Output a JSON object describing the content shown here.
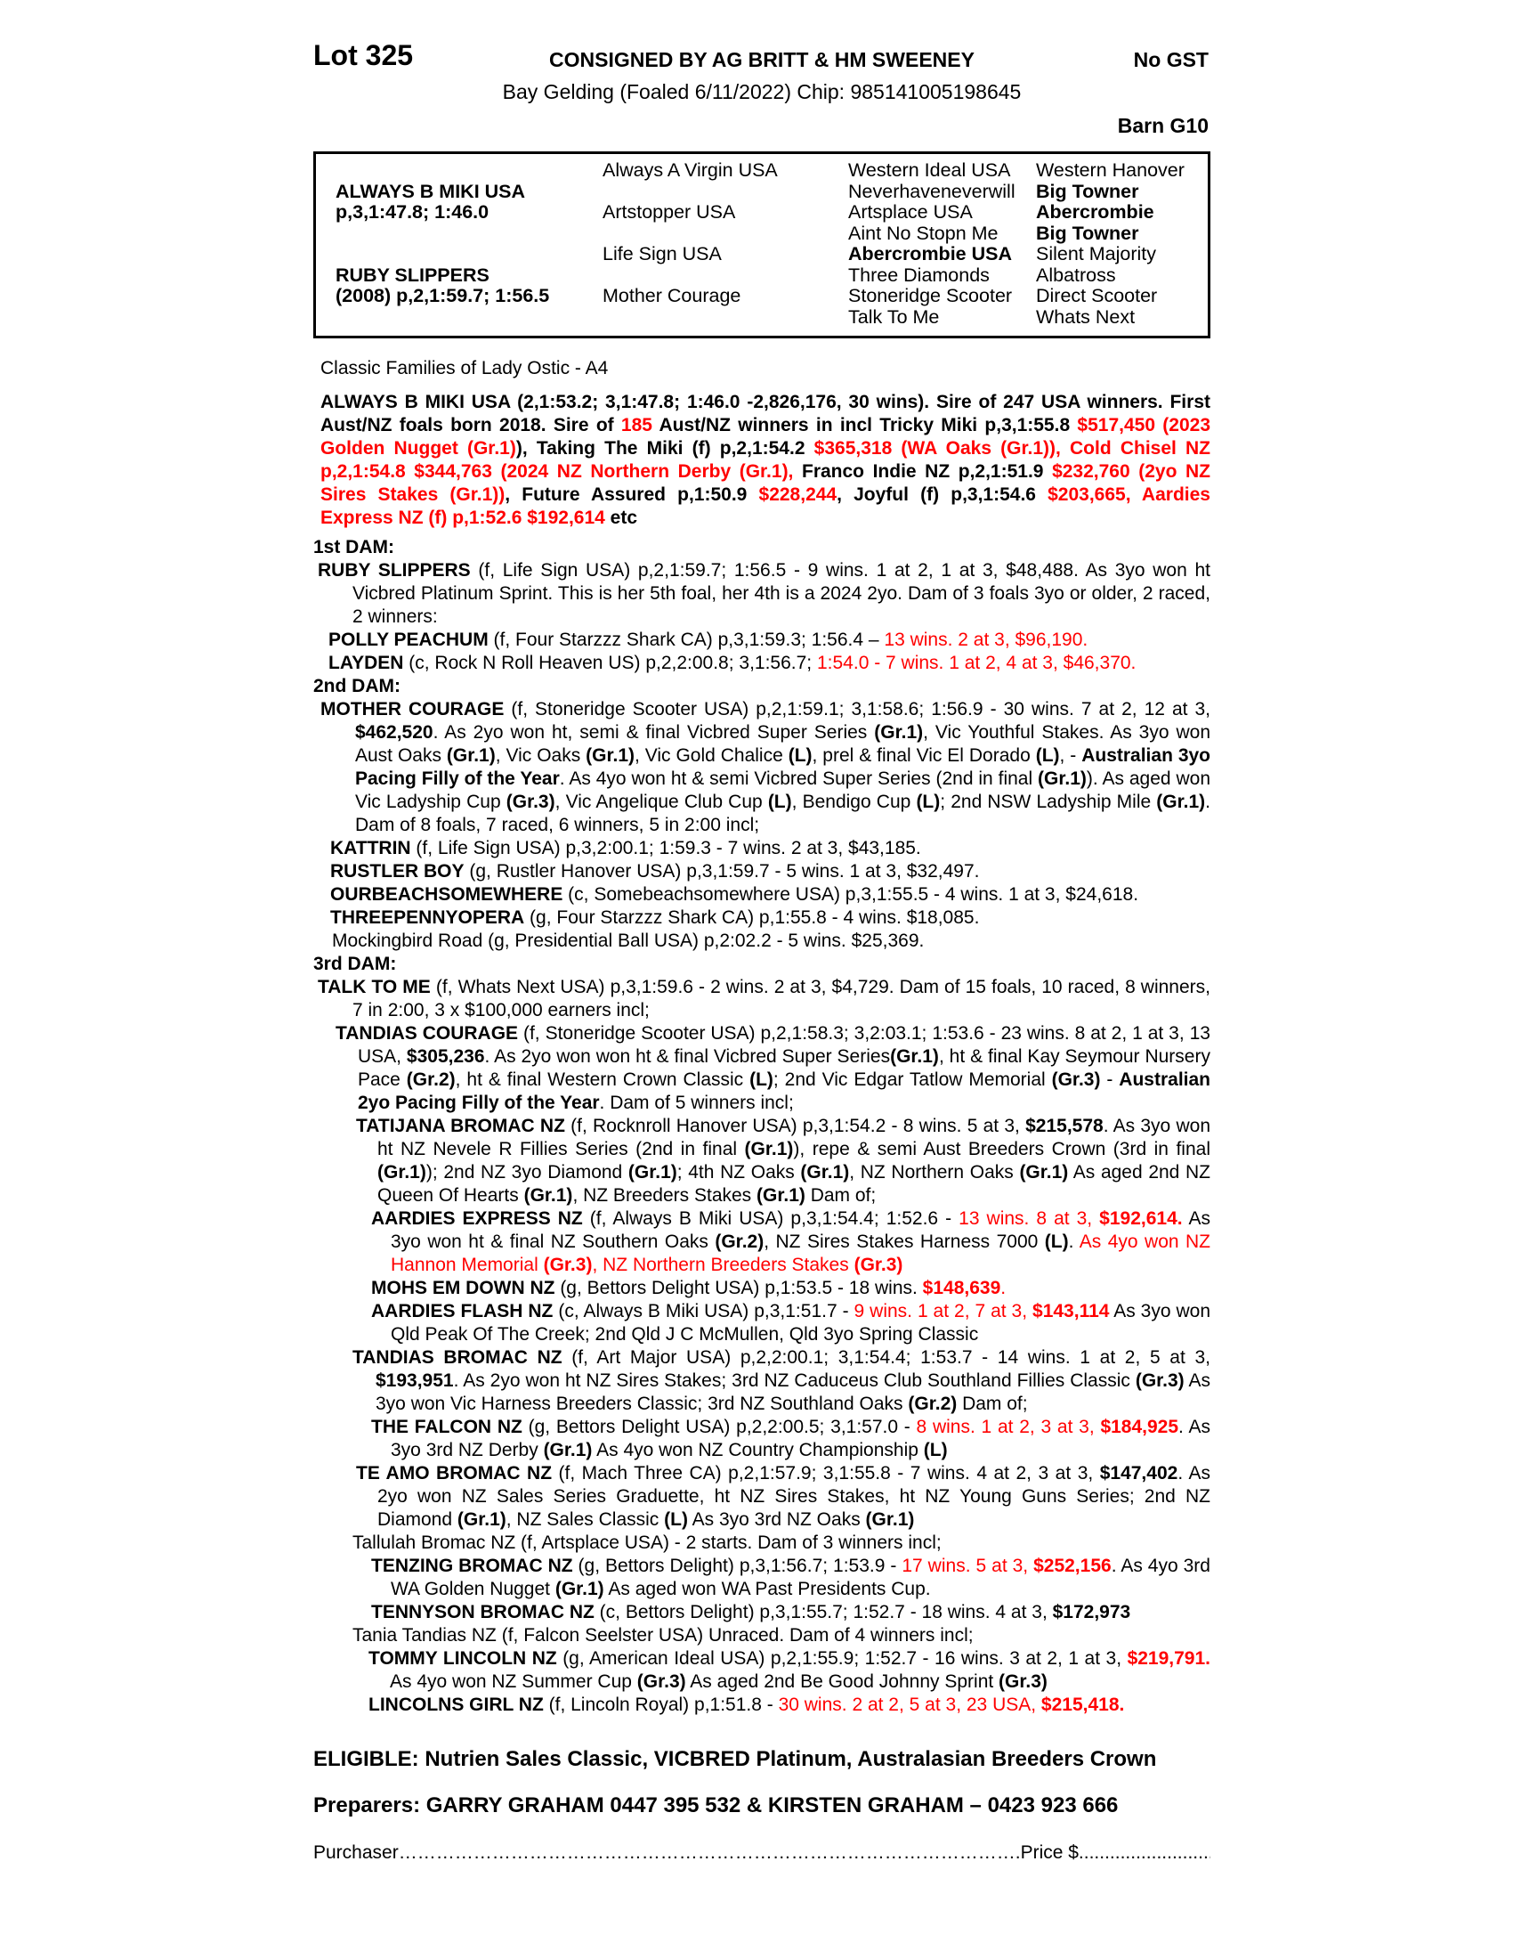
{
  "colors": {
    "accent_red": "#ff0000",
    "text": "#000000",
    "background": "#ffffff"
  },
  "header": {
    "lot": "Lot 325",
    "consigned": "CONSIGNED BY AG BRITT & HM SWEENEY",
    "no_gst": "No GST",
    "description": "Bay Gelding (Foaled 6/11/2022) Chip: 985141005198645",
    "barn": "Barn G10"
  },
  "pedigree_table": {
    "rows": [
      [
        {
          "t": ""
        },
        {
          "t": "Always A Virgin USA"
        },
        {
          "t": "Western Ideal USA"
        },
        {
          "t": "Western Hanover"
        }
      ],
      [
        {
          "t": "ALWAYS B MIKI USA",
          "b": 1
        },
        {
          "t": ""
        },
        {
          "t": "Neverhaveneverwill"
        },
        {
          "t": "Big Towner",
          "b": 1
        }
      ],
      [
        {
          "t": "p,3,1:47.8; 1:46.0",
          "b": 1
        },
        {
          "t": "Artstopper USA"
        },
        {
          "t": "Artsplace USA"
        },
        {
          "t": "Abercrombie",
          "b": 1
        }
      ],
      [
        {
          "t": ""
        },
        {
          "t": ""
        },
        {
          "t": "Aint No Stopn Me"
        },
        {
          "t": "Big Towner",
          "b": 1
        }
      ],
      [
        {
          "t": ""
        },
        {
          "t": "Life Sign USA"
        },
        {
          "t": "Abercrombie USA",
          "b": 1
        },
        {
          "t": "Silent Majority"
        }
      ],
      [
        {
          "t": "RUBY SLIPPERS",
          "b": 1
        },
        {
          "t": ""
        },
        {
          "t": "Three Diamonds"
        },
        {
          "t": "Albatross"
        }
      ],
      [
        {
          "t": "(2008) p,2,1:59.7; 1:56.5",
          "b": 1
        },
        {
          "t": "Mother Courage"
        },
        {
          "t": "Stoneridge Scooter"
        },
        {
          "t": "Direct Scooter"
        }
      ],
      [
        {
          "t": ""
        },
        {
          "t": ""
        },
        {
          "t": "Talk To Me"
        },
        {
          "t": "Whats Next"
        }
      ]
    ]
  },
  "paragraphs": [
    {
      "name": "classic-families-line",
      "ml": 8,
      "mt": 21,
      "seg": [
        {
          "t": "Classic Families of Lady Ostic - A4"
        }
      ]
    },
    {
      "name": "sire-summary",
      "ml": 8,
      "mt": 12,
      "j": 1,
      "seg": [
        {
          "t": "ALWAYS B MIKI USA (2,1:53.2; 3,1:47.8; 1:46.0 -2,826,176, 30 wins). Sire of 247 USA winners. First Aust/NZ foals born 2018. Sire of ",
          "b": 1
        },
        {
          "t": "185",
          "b": 1,
          "r": 1
        },
        {
          "t": " Aust/NZ winners in incl Tricky Miki p,3,1:55.8 ",
          "b": 1
        },
        {
          "t": "$517,450 (2023 Golden Nugget (Gr.1)",
          "b": 1,
          "r": 1
        },
        {
          "t": "), Taking The Miki (f) p,2,1:54.2 ",
          "b": 1
        },
        {
          "t": "$365,318 (WA Oaks (Gr.1)), Cold Chisel NZ p,2,1:54.8 $344,763 (2024 NZ Northern Derby (Gr.1),",
          "b": 1,
          "r": 1
        },
        {
          "t": " Franco Indie NZ p,2,1:51.9 ",
          "b": 1
        },
        {
          "t": "$232,760 (2yo NZ Sires Stakes (Gr.1))",
          "b": 1,
          "r": 1
        },
        {
          "t": ", Future Assured p,1:50.9 ",
          "b": 1
        },
        {
          "t": "$228,244",
          "b": 1,
          "r": 1
        },
        {
          "t": ", Joyful (f) p,3,1:54.6 ",
          "b": 1
        },
        {
          "t": "$203,665, Aardies Express NZ (f) p,1:52.6 $192,614",
          "b": 1,
          "r": 1
        },
        {
          "t": " etc",
          "b": 1
        }
      ]
    },
    {
      "name": "dam1-heading",
      "ml": 0,
      "mt": 7,
      "seg": [
        {
          "t": "1st DAM:",
          "b": 1
        }
      ]
    },
    {
      "name": "ruby-slippers",
      "ml": 5,
      "hi": 39,
      "j": 1,
      "seg": [
        {
          "t": "RUBY SLIPPERS",
          "b": 1
        },
        {
          "t": " (f, Life Sign USA) p,2,1:59.7; 1:56.5 - 9 wins. 1 at 2, 1 at 3, $48,488. As 3yo won ht Vicbred Platinum Sprint. This is her 5th foal, her 4th is a 2024 2yo. Dam of 3 foals 3yo or older, 2 raced, 2 winners:"
        }
      ]
    },
    {
      "name": "polly-peachum",
      "ml": 17,
      "seg": [
        {
          "t": "POLLY PEACHUM",
          "b": 1
        },
        {
          "t": " (f, Four Starzzz Shark CA) p,3,1:59.3; 1:56.4 – "
        },
        {
          "t": "13 wins. 2 at 3, $96,190.",
          "r": 1
        }
      ]
    },
    {
      "name": "layden",
      "ml": 17,
      "seg": [
        {
          "t": "LAYDEN",
          "b": 1
        },
        {
          "t": " (c, Rock N Roll Heaven US) p,2,2:00.8; 3,1:56.7; "
        },
        {
          "t": "1:54.0 - 7 wins. 1 at 2, 4 at 3, $46,370.",
          "r": 1
        }
      ]
    },
    {
      "name": "dam2-heading",
      "ml": 0,
      "seg": [
        {
          "t": "2nd DAM:",
          "b": 1
        }
      ]
    },
    {
      "name": "mother-courage",
      "ml": 8,
      "hi": 39,
      "j": 1,
      "seg": [
        {
          "t": "MOTHER COURAGE",
          "b": 1
        },
        {
          "t": " (f, Stoneridge Scooter USA) p,2,1:59.1; 3,1:58.6; 1:56.9 - 30 wins. 7 at 2, 12 at 3, "
        },
        {
          "t": "$462,520",
          "b": 1
        },
        {
          "t": ". As 2yo won ht, semi & final Vicbred Super Series "
        },
        {
          "t": "(Gr.1)",
          "b": 1
        },
        {
          "t": ", Vic Youthful Stakes. As 3yo won Aust Oaks "
        },
        {
          "t": "(Gr.1)",
          "b": 1
        },
        {
          "t": ", Vic Oaks "
        },
        {
          "t": "(Gr.1)",
          "b": 1
        },
        {
          "t": ", Vic Gold Chalice "
        },
        {
          "t": "(L)",
          "b": 1
        },
        {
          "t": ", prel & final Vic El Dorado "
        },
        {
          "t": "(L)",
          "b": 1
        },
        {
          "t": ", - "
        },
        {
          "t": "Australian 3yo Pacing Filly of the Year",
          "b": 1
        },
        {
          "t": ". As 4yo won ht & semi Vicbred Super Series (2nd in final "
        },
        {
          "t": "(Gr.1)",
          "b": 1
        },
        {
          "t": "). As aged won Vic Ladyship Cup "
        },
        {
          "t": "(Gr.3)",
          "b": 1
        },
        {
          "t": ", Vic Angelique Club Cup "
        },
        {
          "t": "(L)",
          "b": 1
        },
        {
          "t": ", Bendigo Cup "
        },
        {
          "t": "(L)",
          "b": 1
        },
        {
          "t": "; 2nd NSW Ladyship Mile "
        },
        {
          "t": "(Gr.1)",
          "b": 1
        },
        {
          "t": ". Dam of 8 foals, 7 raced, 6 winners, 5 in 2:00 incl;"
        }
      ]
    },
    {
      "name": "kattrin",
      "ml": 19,
      "seg": [
        {
          "t": "KATTRIN",
          "b": 1
        },
        {
          "t": " (f, Life Sign USA) p,3,2:00.1; 1:59.3 - 7 wins. 2 at 3, $43,185."
        }
      ]
    },
    {
      "name": "rustler-boy",
      "ml": 19,
      "seg": [
        {
          "t": "RUSTLER BOY",
          "b": 1
        },
        {
          "t": " (g, Rustler Hanover USA) p,3,1:59.7 - 5 wins. 1 at 3, $32,497."
        }
      ]
    },
    {
      "name": "ourbeachsomewhere",
      "ml": 19,
      "seg": [
        {
          "t": "OURBEACHSOMEWHERE",
          "b": 1
        },
        {
          "t": " (c, Somebeachsomewhere USA) p,3,1:55.5 - 4 wins. 1 at 3, $24,618."
        }
      ]
    },
    {
      "name": "threepennyopera",
      "ml": 19,
      "seg": [
        {
          "t": "THREEPENNYOPERA",
          "b": 1
        },
        {
          "t": " (g, Four Starzzz Shark CA) p,1:55.8 - 4 wins. $18,085."
        }
      ]
    },
    {
      "name": "mockingbird-road",
      "ml": 21,
      "seg": [
        {
          "t": "Mockingbird Road (g, Presidential Ball USA) p,2:02.2 - 5 wins. $25,369."
        }
      ]
    },
    {
      "name": "dam3-heading",
      "ml": 0,
      "seg": [
        {
          "t": "3rd DAM:",
          "b": 1
        }
      ]
    },
    {
      "name": "talk-to-me",
      "ml": 5,
      "hi": 39,
      "j": 1,
      "seg": [
        {
          "t": "TALK TO ME",
          "b": 1
        },
        {
          "t": " (f, Whats Next USA) p,3,1:59.6 - 2 wins. 2 at 3, $4,729. Dam of 15 foals, 10 raced, 8 winners, 7 in 2:00, 3 x $100,000 earners incl;"
        }
      ]
    },
    {
      "name": "tandias-courage",
      "ml": 25,
      "hi": 25,
      "j": 1,
      "seg": [
        {
          "t": "TANDIAS COURAGE",
          "b": 1
        },
        {
          "t": " (f, Stoneridge Scooter USA) p,2,1:58.3; 3,2:03.1; 1:53.6 - 23 wins. 8 at 2, 1 at 3, 13 USA, "
        },
        {
          "t": "$305,236",
          "b": 1
        },
        {
          "t": ". As 2yo won won ht & final Vicbred Super Series"
        },
        {
          "t": "(Gr.1)",
          "b": 1
        },
        {
          "t": ", ht & final Kay Seymour Nursery Pace "
        },
        {
          "t": "(Gr.2)",
          "b": 1
        },
        {
          "t": ", ht & final Western Crown Classic "
        },
        {
          "t": "(L)",
          "b": 1
        },
        {
          "t": "; 2nd Vic Edgar Tatlow Memorial "
        },
        {
          "t": "(Gr.3)",
          "b": 1
        },
        {
          "t": " - "
        },
        {
          "t": "Australian 2yo Pacing Filly of the Year",
          "b": 1
        },
        {
          "t": ". Dam of 5 winners incl;"
        }
      ]
    },
    {
      "name": "tatijana-bromac",
      "ml": 48,
      "hi": 24,
      "j": 1,
      "seg": [
        {
          "t": "TATIJANA BROMAC NZ",
          "b": 1
        },
        {
          "t": " (f, Rocknroll Hanover USA) p,3,1:54.2 - 8 wins. 5 at 3, "
        },
        {
          "t": "$215,578",
          "b": 1
        },
        {
          "t": ". As 3yo won ht NZ Nevele R Fillies Series (2nd in final "
        },
        {
          "t": "(Gr.1)",
          "b": 1
        },
        {
          "t": "), repe & semi Aust Breeders Crown (3rd in final "
        },
        {
          "t": "(Gr.1)",
          "b": 1
        },
        {
          "t": "); 2nd NZ 3yo Diamond "
        },
        {
          "t": "(Gr.1)",
          "b": 1
        },
        {
          "t": "; 4th NZ Oaks "
        },
        {
          "t": "(Gr.1)",
          "b": 1
        },
        {
          "t": ", NZ Northern Oaks "
        },
        {
          "t": "(Gr.1)",
          "b": 1
        },
        {
          "t": " As aged 2nd NZ Queen Of Hearts "
        },
        {
          "t": "(Gr.1)",
          "b": 1
        },
        {
          "t": ", NZ Breeders Stakes "
        },
        {
          "t": "(Gr.1)",
          "b": 1
        },
        {
          "t": " Dam of;"
        }
      ]
    },
    {
      "name": "aardies-express",
      "ml": 65,
      "hi": 22,
      "j": 1,
      "seg": [
        {
          "t": "AARDIES EXPRESS NZ",
          "b": 1
        },
        {
          "t": " (f, Always B Miki USA) p,3,1:54.4; 1:52.6 - "
        },
        {
          "t": "13 wins. 8 at 3, ",
          "r": 1
        },
        {
          "t": "$192,614.",
          "b": 1,
          "r": 1
        },
        {
          "t": " As 3yo won ht & final NZ Southern Oaks "
        },
        {
          "t": "(Gr.2)",
          "b": 1
        },
        {
          "t": ", NZ Sires Stakes Harness 7000 "
        },
        {
          "t": "(L)",
          "b": 1
        },
        {
          "t": ". "
        },
        {
          "t": "As 4yo won NZ Hannon Memorial ",
          "r": 1
        },
        {
          "t": "(Gr.3)",
          "b": 1,
          "r": 1
        },
        {
          "t": ", NZ Northern Breeders Stakes ",
          "r": 1
        },
        {
          "t": "(Gr.3)",
          "b": 1,
          "r": 1
        }
      ]
    },
    {
      "name": "mohs-em-down",
      "ml": 65,
      "seg": [
        {
          "t": "MOHS EM DOWN NZ",
          "b": 1
        },
        {
          "t": " (g, Bettors Delight USA) p,1:53.5 - 18 wins. "
        },
        {
          "t": "$148,639",
          "b": 1,
          "r": 1
        },
        {
          "t": ".",
          "r": 1
        }
      ]
    },
    {
      "name": "aardies-flash",
      "ml": 65,
      "hi": 22,
      "j": 1,
      "seg": [
        {
          "t": "AARDIES FLASH NZ",
          "b": 1
        },
        {
          "t": " (c, Always B Miki USA) p,3,1:51.7 - "
        },
        {
          "t": "9 wins. 1 at 2, 7 at 3, ",
          "r": 1
        },
        {
          "t": "$143,114",
          "b": 1,
          "r": 1
        },
        {
          "t": " As 3yo won Qld Peak Of The Creek; 2nd Qld J C McMullen, Qld 3yo Spring Classic"
        }
      ]
    },
    {
      "name": "tandias-bromac",
      "ml": 44,
      "hi": 26,
      "j": 1,
      "seg": [
        {
          "t": "TANDIAS BROMAC NZ",
          "b": 1
        },
        {
          "t": " (f, Art Major USA) p,2,2:00.1; 3,1:54.4; 1:53.7 - 14 wins. 1 at 2, 5 at 3, "
        },
        {
          "t": "$193,951",
          "b": 1
        },
        {
          "t": ". As 2yo won ht NZ Sires Stakes; 3rd NZ Caduceus Club Southland Fillies Classic "
        },
        {
          "t": "(Gr.3)",
          "b": 1
        },
        {
          "t": " As 3yo won Vic Harness Breeders Classic; 3rd NZ Southland Oaks "
        },
        {
          "t": "(Gr.2)",
          "b": 1
        },
        {
          "t": " Dam of;"
        }
      ]
    },
    {
      "name": "the-falcon",
      "ml": 65,
      "hi": 22,
      "j": 1,
      "seg": [
        {
          "t": "THE FALCON NZ",
          "b": 1
        },
        {
          "t": " (g, Bettors Delight USA) p,2,2:00.5; 3,1:57.0 - "
        },
        {
          "t": "8 wins. 1 at 2, 3 at 3, ",
          "r": 1
        },
        {
          "t": "$184,925",
          "b": 1,
          "r": 1
        },
        {
          "t": ". As 3yo 3rd NZ Derby "
        },
        {
          "t": "(Gr.1)",
          "b": 1
        },
        {
          "t": " As 4yo won NZ Country Championship "
        },
        {
          "t": "(L)",
          "b": 1
        }
      ]
    },
    {
      "name": "te-amo-bromac",
      "ml": 48,
      "hi": 24,
      "j": 1,
      "seg": [
        {
          "t": "TE AMO BROMAC NZ",
          "b": 1
        },
        {
          "t": " (f, Mach Three CA) p,2,1:57.9; 3,1:55.8 - 7 wins. 4 at 2, 3 at 3, "
        },
        {
          "t": "$147,402",
          "b": 1
        },
        {
          "t": ". As 2yo won NZ Sales Series Graduette, ht NZ Sires Stakes, ht NZ Young Guns Series; 2nd NZ Diamond "
        },
        {
          "t": "(Gr.1)",
          "b": 1
        },
        {
          "t": ", NZ Sales Classic "
        },
        {
          "t": "(L)",
          "b": 1
        },
        {
          "t": " As 3yo 3rd NZ Oaks "
        },
        {
          "t": "(Gr.1)",
          "b": 1
        }
      ]
    },
    {
      "name": "tallulah-bromac",
      "ml": 44,
      "seg": [
        {
          "t": "Tallulah Bromac NZ (f, Artsplace USA) - 2 starts. Dam of 3 winners incl;"
        }
      ]
    },
    {
      "name": "tenzing-bromac",
      "ml": 65,
      "hi": 22,
      "j": 1,
      "seg": [
        {
          "t": "TENZING BROMAC NZ",
          "b": 1
        },
        {
          "t": " (g, Bettors Delight) p,3,1:56.7; 1:53.9 - "
        },
        {
          "t": "17 wins. 5 at 3, ",
          "r": 1
        },
        {
          "t": "$252,156",
          "b": 1,
          "r": 1
        },
        {
          "t": ". As 4yo 3rd WA Golden Nugget "
        },
        {
          "t": "(Gr.1)",
          "b": 1
        },
        {
          "t": " As aged won WA Past Presidents Cup."
        }
      ]
    },
    {
      "name": "tennyson-bromac",
      "ml": 65,
      "seg": [
        {
          "t": "TENNYSON BROMAC NZ",
          "b": 1
        },
        {
          "t": " (c, Bettors Delight) p,3,1:55.7; 1:52.7 - 18 wins. 4 at 3, "
        },
        {
          "t": "$172,973",
          "b": 1
        }
      ]
    },
    {
      "name": "tania-tandias",
      "ml": 44,
      "seg": [
        {
          "t": "Tania Tandias NZ (f, Falcon Seelster USA) Unraced. Dam of 4 winners incl;"
        }
      ]
    },
    {
      "name": "tommy-lincoln",
      "ml": 62,
      "hi": 24,
      "j": 1,
      "seg": [
        {
          "t": "TOMMY LINCOLN NZ",
          "b": 1
        },
        {
          "t": " (g, American Ideal USA) p,2,1:55.9; 1:52.7 - 16 wins. 3 at 2, 1 at 3, "
        },
        {
          "t": "$219,791.",
          "b": 1,
          "r": 1
        },
        {
          "t": " As 4yo won NZ Summer Cup "
        },
        {
          "t": "(Gr.3)",
          "b": 1
        },
        {
          "t": " As aged 2nd Be Good Johnny Sprint "
        },
        {
          "t": "(Gr.3)",
          "b": 1
        }
      ]
    },
    {
      "name": "lincolns-girl",
      "ml": 62,
      "seg": [
        {
          "t": "LINCOLNS GIRL NZ",
          "b": 1
        },
        {
          "t": " (f, Lincoln Royal) p,1:51.8 - "
        },
        {
          "t": "30 wins. 2 at 2, 5 at 3, 23 USA, ",
          "r": 1
        },
        {
          "t": "$215,418.",
          "b": 1,
          "r": 1
        }
      ]
    }
  ],
  "footer": {
    "eligible": "ELIGIBLE: Nutrien Sales Classic, VICBRED Platinum, Australasian Breeders Crown",
    "preparers": "Preparers: GARRY GRAHAM 0447 395 532 & KIRSTEN GRAHAM – 0423 923 666",
    "purchaser_label": "Purchaser",
    "purchaser_dots": "……………………………………………………………………………………….",
    "price_label": "Price $",
    "price_dots": "....................................."
  }
}
